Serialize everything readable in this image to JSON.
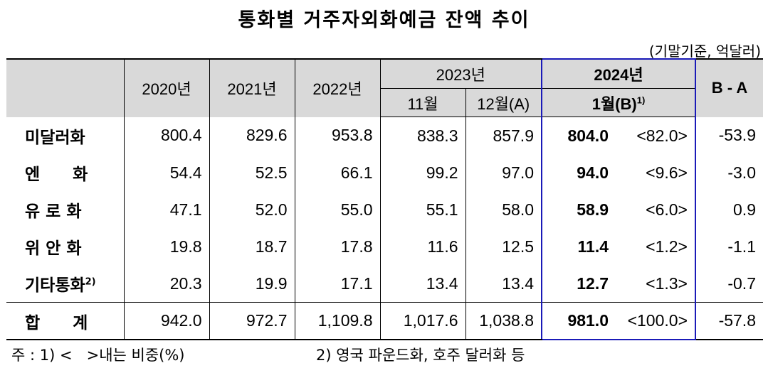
{
  "title": "통화별 거주자외화예금 잔액 추이",
  "unit": "(기말기준, 억달러)",
  "columns": {
    "y2020": "2020년",
    "y2021": "2021년",
    "y2022": "2022년",
    "y2023": "2023년",
    "nov": "11월",
    "dec": "12월(A)",
    "y2024": "2024년",
    "jan": "1월(B)",
    "jan_sup": "1)",
    "diff": "B - A"
  },
  "rows": [
    {
      "label": "미달러화",
      "sup": "",
      "v2020": "800.4",
      "v2021": "829.6",
      "v2022": "953.8",
      "nov": "838.3",
      "dec": "857.9",
      "jan": "804.0",
      "share": "<82.0>",
      "diff": "-53.9"
    },
    {
      "label": "엔　　화",
      "sup": "",
      "v2020": "54.4",
      "v2021": "52.5",
      "v2022": "66.1",
      "nov": "99.2",
      "dec": "97.0",
      "jan": "94.0",
      "share": "<9.6>",
      "diff": "-3.0"
    },
    {
      "label": "유 로 화",
      "sup": "",
      "v2020": "47.1",
      "v2021": "52.0",
      "v2022": "55.0",
      "nov": "55.1",
      "dec": "58.0",
      "jan": "58.9",
      "share": "<6.0>",
      "diff": "0.9"
    },
    {
      "label": "위 안 화",
      "sup": "",
      "v2020": "19.8",
      "v2021": "18.7",
      "v2022": "17.8",
      "nov": "11.6",
      "dec": "12.5",
      "jan": "11.4",
      "share": "<1.2>",
      "diff": "-1.1"
    },
    {
      "label": "기타통화",
      "sup": "2)",
      "v2020": "20.3",
      "v2021": "19.9",
      "v2022": "17.1",
      "nov": "13.4",
      "dec": "13.4",
      "jan": "12.7",
      "share": "<1.3>",
      "diff": "-0.7"
    }
  ],
  "total": {
    "label": "합　　계",
    "v2020": "942.0",
    "v2021": "972.7",
    "v2022": "1,109.8",
    "nov": "1,017.6",
    "dec": "1,038.8",
    "jan": "981.0",
    "share": "<100.0>",
    "diff": "-57.8"
  },
  "footnote": {
    "note1": "주 : 1) <   >내는 비중(%)",
    "note2": "2) 영국 파운드화, 호주 달러화 등"
  }
}
